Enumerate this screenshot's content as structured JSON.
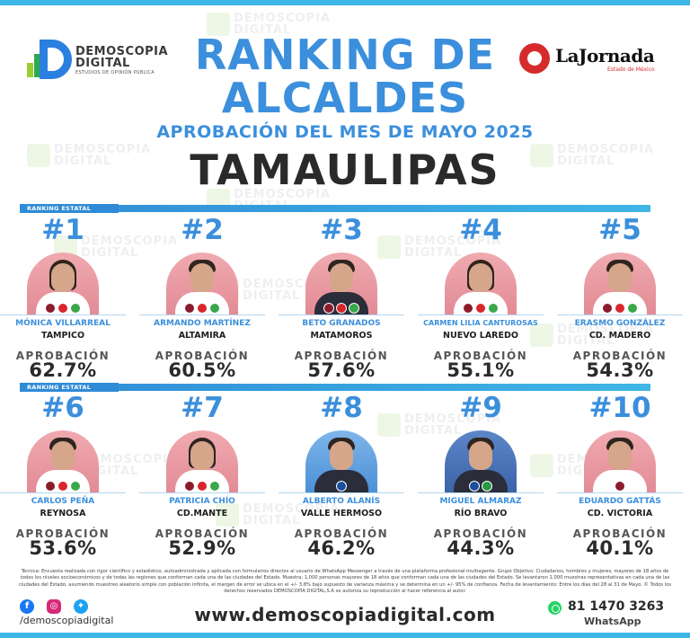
{
  "brand": {
    "name_line1": "DEMOSCOPIA",
    "name_line2": "DIGITAL",
    "tagline": "ESTUDIOS DE OPINIÓN PÚBLICA"
  },
  "partner": {
    "name": "LaJornada",
    "region": "Estado de México"
  },
  "header": {
    "title_line1": "RANKING DE",
    "title_line2": "ALCALDES",
    "subtitle": "APROBACIÓN DEL MES DE MAYO 2025",
    "state": "TAMAULIPAS"
  },
  "section_label": "RANKING ESTATAL",
  "approval_label": "APROBACIÓN",
  "mayors": [
    {
      "rank": "#1",
      "name": "MÓNICA VILLARREAL",
      "city": "TAMPICO",
      "approval": "62.7%",
      "approval_value": 62.7,
      "parties": [
        "morena",
        "pt",
        "verde"
      ]
    },
    {
      "rank": "#2",
      "name": "ARMANDO MARTÍNEZ",
      "city": "ALTAMIRA",
      "approval": "60.5%",
      "approval_value": 60.5,
      "parties": [
        "morena",
        "pt",
        "verde"
      ]
    },
    {
      "rank": "#3",
      "name": "BETO GRANADOS",
      "city": "MATAMOROS",
      "approval": "57.6%",
      "approval_value": 57.6,
      "parties": [
        "morena",
        "pt",
        "verde"
      ]
    },
    {
      "rank": "#4",
      "name": "CARMEN LILIA CANTUROSAS",
      "city": "NUEVO LAREDO",
      "approval": "55.1%",
      "approval_value": 55.1,
      "parties": [
        "morena",
        "pt",
        "verde"
      ]
    },
    {
      "rank": "#5",
      "name": "ERASMO GONZÁLEZ",
      "city": "CD. MADERO",
      "approval": "54.3%",
      "approval_value": 54.3,
      "parties": [
        "morena",
        "pt",
        "verde"
      ]
    },
    {
      "rank": "#6",
      "name": "CARLOS PEÑA",
      "city": "REYNOSA",
      "approval": "53.6%",
      "approval_value": 53.6,
      "parties": [
        "morena",
        "pt",
        "verde"
      ]
    },
    {
      "rank": "#7",
      "name": "PATRICIA CHÍO",
      "city": "CD.MANTE",
      "approval": "52.9%",
      "approval_value": 52.9,
      "parties": [
        "morena",
        "pt",
        "verde"
      ]
    },
    {
      "rank": "#8",
      "name": "ALBERTO ALANÍS",
      "city": "VALLE HERMOSO",
      "approval": "46.2%",
      "approval_value": 46.2,
      "parties": [
        "pan"
      ]
    },
    {
      "rank": "#9",
      "name": "MIGUEL ALMARAZ",
      "city": "RÍO BRAVO",
      "approval": "44.3%",
      "approval_value": 44.3,
      "parties": [
        "pan",
        "pri"
      ]
    },
    {
      "rank": "#10",
      "name": "EDUARDO GATTÁS",
      "city": "CD. VICTORIA",
      "approval": "40.1%",
      "approval_value": 40.1,
      "parties": [
        "morena"
      ]
    }
  ],
  "footnote": "Técnica: Encuesta realizada con rigor científico y estadístico, autoadministrada y aplicada con formularios directos al usuario de WhatsApp Messenger a través de una plataforma profesional multiagente. Grupo Objetivo: Ciudadanos, hombres y mujeres, mayores de 18 años de todos los niveles socioeconómicos y de todas las regiones que conforman cada una de las ciudades del Estado. Muestra: 1,000 personas mayores de 18 años que conforman cada una de las ciudades del Estado. Se levantaron 1,000 muestras representativas en cada una de las ciudades del Estado, asumiendo muestreo aleatorio simple con población infinita, el margen de error se ubica en el +/- 3.8% bajo supuesto de varianza máxima y se determina en un +/- 95% de confianza. Fecha de levantamiento: Entre los días del 28 al 31 de Mayo. © Todos los derechos reservados DEMOSCOPIA DIGITAL,S.A se autoriza su reproducción al hacer referencia al autor.",
  "footer": {
    "handle": "/demoscopiadigital",
    "website": "www.demoscopiadigital.com",
    "phone": "81 1470 3263",
    "whatsapp_label": "WhatsApp"
  },
  "colors": {
    "accent_blue": "#3b8fdc",
    "bar_blue": "#2f8bd6",
    "text_dark": "#2a2a2a"
  }
}
